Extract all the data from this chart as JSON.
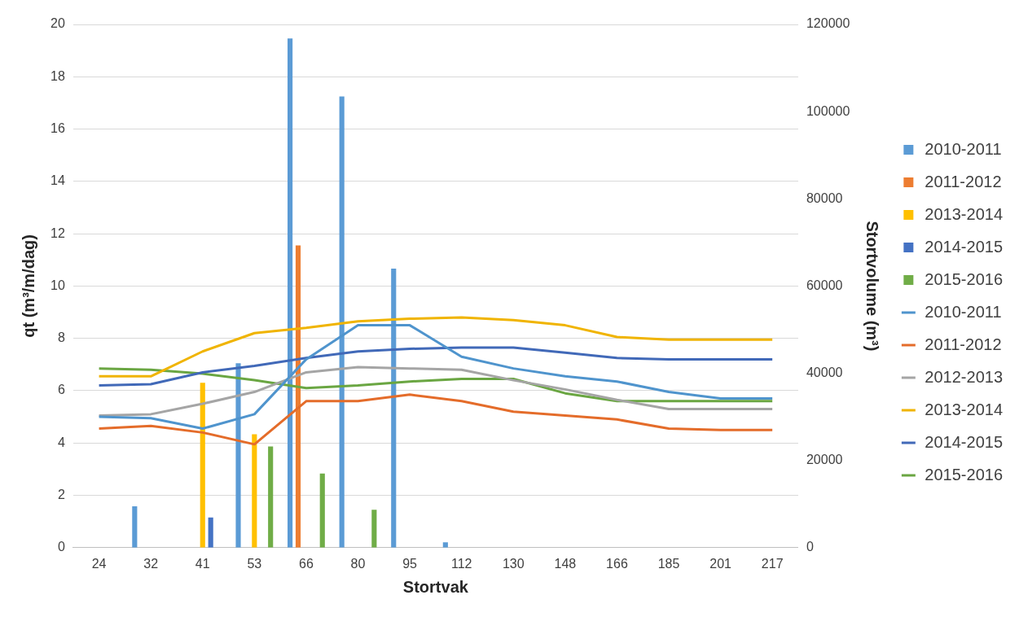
{
  "chart_data": {
    "type": "line",
    "xlabel": "Stortvak",
    "ylabel": "qt (m³/m/dag)",
    "y2label": "Stortvolume (m³)",
    "categories": [
      "24",
      "32",
      "41",
      "53",
      "66",
      "80",
      "95",
      "112",
      "130",
      "148",
      "166",
      "185",
      "201",
      "217"
    ],
    "ylim": [
      0,
      20
    ],
    "yticks": [
      0,
      2,
      4,
      6,
      8,
      10,
      12,
      14,
      16,
      18,
      20
    ],
    "y2lim": [
      0,
      120000
    ],
    "y2ticks": [
      0,
      20000,
      40000,
      60000,
      80000,
      100000,
      120000
    ],
    "grid": "y",
    "legend": "right",
    "marker": "none",
    "line_style": "solid",
    "series": [
      {
        "name": "2010-2011",
        "type": "bar",
        "axis": "y2",
        "color": "#5b9bd5",
        "values": [
          null,
          9500,
          null,
          42300,
          116800,
          103500,
          64000,
          1200,
          null,
          null,
          null,
          null,
          null,
          null
        ]
      },
      {
        "name": "2011-2012",
        "type": "bar",
        "axis": "y2",
        "color": "#ed7d31",
        "values": [
          null,
          null,
          null,
          null,
          69300,
          null,
          null,
          null,
          null,
          null,
          null,
          null,
          null,
          null
        ]
      },
      {
        "name": "2013-2014",
        "type": "bar",
        "axis": "y2",
        "color": "#ffc000",
        "values": [
          null,
          null,
          37800,
          26000,
          null,
          null,
          null,
          null,
          null,
          null,
          null,
          null,
          null,
          null
        ]
      },
      {
        "name": "2014-2015",
        "type": "bar",
        "axis": "y2",
        "color": "#4472c4",
        "values": [
          null,
          null,
          6900,
          null,
          null,
          null,
          null,
          null,
          null,
          null,
          null,
          null,
          null,
          null
        ]
      },
      {
        "name": "2015-2016",
        "type": "bar",
        "axis": "y2",
        "color": "#70ad47",
        "values": [
          null,
          null,
          null,
          23200,
          17000,
          8700,
          null,
          null,
          null,
          null,
          null,
          null,
          null,
          null
        ]
      },
      {
        "name": "2010-2011",
        "color": "#4f94cd",
        "values": [
          5.0,
          4.95,
          4.55,
          5.1,
          7.2,
          8.5,
          8.5,
          7.3,
          6.85,
          6.55,
          6.35,
          5.95,
          5.7,
          5.7
        ]
      },
      {
        "name": "2011-2012",
        "color": "#e46c2a",
        "values": [
          4.55,
          4.65,
          4.4,
          3.95,
          5.6,
          5.6,
          5.85,
          5.6,
          5.2,
          5.05,
          4.9,
          4.55,
          4.5,
          4.5
        ]
      },
      {
        "name": "2012-2013",
        "color": "#a5a5a5",
        "values": [
          5.05,
          5.1,
          5.5,
          5.95,
          6.7,
          6.9,
          6.85,
          6.8,
          6.4,
          6.05,
          5.65,
          5.3,
          5.3,
          5.3
        ]
      },
      {
        "name": "2013-2014",
        "color": "#f0b400",
        "values": [
          6.55,
          6.55,
          7.5,
          8.2,
          8.4,
          8.65,
          8.75,
          8.8,
          8.7,
          8.5,
          8.05,
          7.95,
          7.95,
          7.95
        ]
      },
      {
        "name": "2014-2015",
        "color": "#4169b8",
        "values": [
          6.2,
          6.25,
          6.7,
          6.95,
          7.25,
          7.5,
          7.6,
          7.65,
          7.65,
          7.45,
          7.25,
          7.2,
          7.2,
          7.2
        ]
      },
      {
        "name": "2015-2016",
        "color": "#6aa642",
        "values": [
          6.85,
          6.8,
          6.65,
          6.4,
          6.1,
          6.2,
          6.35,
          6.45,
          6.45,
          5.9,
          5.6,
          5.6,
          5.6,
          5.6
        ]
      }
    ]
  }
}
